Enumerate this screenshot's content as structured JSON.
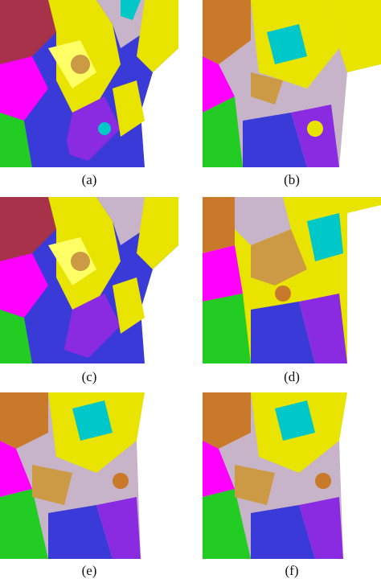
{
  "figure": {
    "panels": [
      {
        "id": "a",
        "caption": "(a)"
      },
      {
        "id": "b",
        "caption": "(b)"
      },
      {
        "id": "c",
        "caption": "(c)"
      },
      {
        "id": "d",
        "caption": "(d)"
      },
      {
        "id": "e",
        "caption": "(e)"
      },
      {
        "id": "f",
        "caption": "(f)"
      }
    ],
    "class_colors": [
      "#e8e400",
      "#3a3ad8",
      "#8a2be2",
      "#00c8c8",
      "#ff00ff",
      "#22cc22",
      "#c87a2a",
      "#cc9944",
      "#c8b4c8",
      "#a8324a",
      "#ffffff"
    ]
  }
}
